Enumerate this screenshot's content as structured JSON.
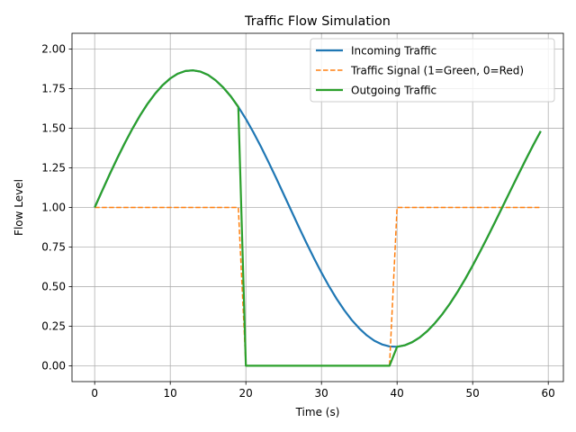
{
  "chart_data": {
    "type": "line",
    "title": "Traffic Flow Simulation",
    "xlabel": "Time (s)",
    "ylabel": "Flow Level",
    "xlim": [
      -3,
      62
    ],
    "ylim": [
      -0.1,
      2.1
    ],
    "xticks": [
      0,
      10,
      20,
      30,
      40,
      50,
      60
    ],
    "xtick_labels": [
      "0",
      "10",
      "20",
      "30",
      "40",
      "50",
      "60"
    ],
    "yticks": [
      0.0,
      0.25,
      0.5,
      0.75,
      1.0,
      1.25,
      1.5,
      1.75,
      2.0
    ],
    "ytick_labels": [
      "0.00",
      "0.25",
      "0.50",
      "0.75",
      "1.00",
      "1.25",
      "1.50",
      "1.75",
      "2.00"
    ],
    "grid": true,
    "legend_position": "top-right",
    "x": [
      0,
      1,
      2,
      3,
      4,
      5,
      6,
      7,
      8,
      9,
      10,
      11,
      12,
      13,
      14,
      15,
      16,
      17,
      18,
      19,
      20,
      21,
      22,
      23,
      24,
      25,
      26,
      27,
      28,
      29,
      30,
      31,
      32,
      33,
      34,
      35,
      36,
      37,
      38,
      39,
      40,
      41,
      42,
      43,
      44,
      45,
      46,
      47,
      48,
      49,
      50,
      51,
      52,
      53,
      54,
      55,
      56,
      57,
      58,
      59
    ],
    "series": [
      {
        "name": "Incoming Traffic",
        "color": "#1f77b4",
        "style": "solid",
        "values": [
          1.0,
          1.106,
          1.211,
          1.312,
          1.408,
          1.498,
          1.581,
          1.655,
          1.719,
          1.773,
          1.815,
          1.845,
          1.862,
          1.866,
          1.858,
          1.837,
          1.803,
          1.758,
          1.702,
          1.635,
          1.559,
          1.474,
          1.383,
          1.286,
          1.186,
          1.083,
          0.98,
          0.877,
          0.777,
          0.68,
          0.588,
          0.502,
          0.423,
          0.352,
          0.289,
          0.236,
          0.192,
          0.158,
          0.135,
          0.122,
          0.12,
          0.129,
          0.149,
          0.179,
          0.219,
          0.269,
          0.327,
          0.393,
          0.467,
          0.547,
          0.633,
          0.723,
          0.816,
          0.912,
          1.009,
          1.107,
          1.204,
          1.3,
          1.393,
          1.482
        ]
      },
      {
        "name": "Traffic Signal (1=Green, 0=Red)",
        "color": "#ff7f0e",
        "style": "dashed",
        "values": [
          1,
          1,
          1,
          1,
          1,
          1,
          1,
          1,
          1,
          1,
          1,
          1,
          1,
          1,
          1,
          1,
          1,
          1,
          1,
          1,
          0,
          0,
          0,
          0,
          0,
          0,
          0,
          0,
          0,
          0,
          0,
          0,
          0,
          0,
          0,
          0,
          0,
          0,
          0,
          0,
          1,
          1,
          1,
          1,
          1,
          1,
          1,
          1,
          1,
          1,
          1,
          1,
          1,
          1,
          1,
          1,
          1,
          1,
          1,
          1
        ]
      },
      {
        "name": "Outgoing Traffic",
        "color": "#2ca02c",
        "style": "solid",
        "values": [
          1.0,
          1.106,
          1.211,
          1.312,
          1.408,
          1.498,
          1.581,
          1.655,
          1.719,
          1.773,
          1.815,
          1.845,
          1.862,
          1.866,
          1.858,
          1.837,
          1.803,
          1.758,
          1.702,
          1.635,
          0,
          0,
          0,
          0,
          0,
          0,
          0,
          0,
          0,
          0,
          0,
          0,
          0,
          0,
          0,
          0,
          0,
          0,
          0,
          0,
          0.12,
          0.129,
          0.149,
          0.179,
          0.219,
          0.269,
          0.327,
          0.393,
          0.467,
          0.547,
          0.633,
          0.723,
          0.816,
          0.912,
          1.009,
          1.107,
          1.204,
          1.3,
          1.393,
          1.482
        ]
      }
    ]
  }
}
